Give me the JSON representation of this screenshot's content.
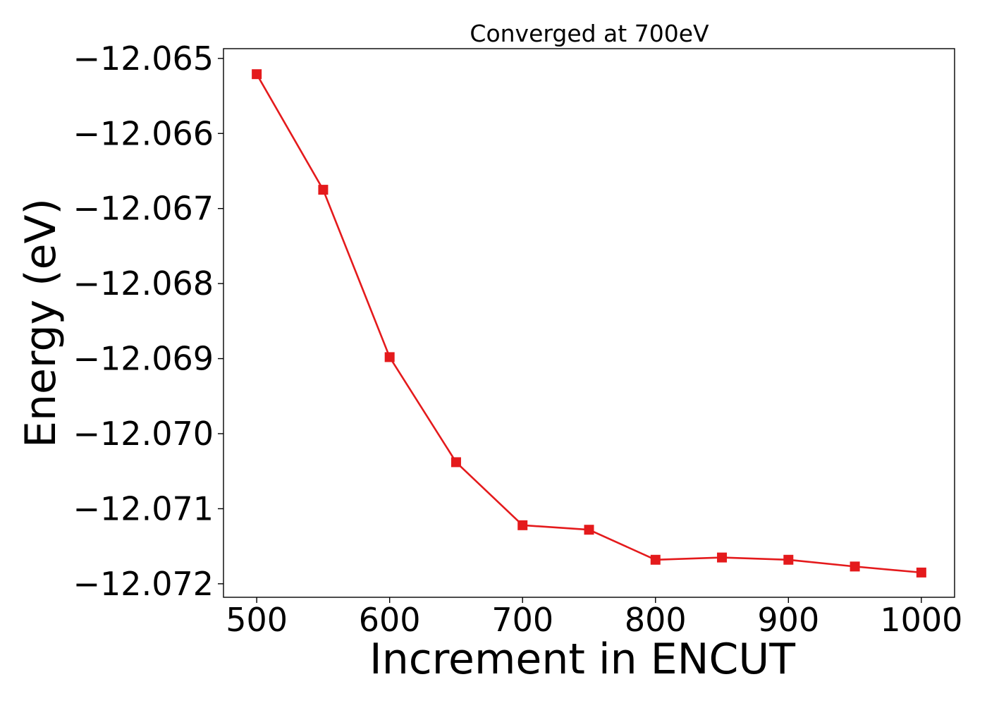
{
  "chart_data": {
    "type": "line",
    "title": "Converged at 700eV",
    "xlabel": "Increment in ENCUT",
    "ylabel": "Energy (eV)",
    "xlim": [
      475,
      1025
    ],
    "ylim": [
      -12.07218,
      -12.06487
    ],
    "x_ticks": [
      500,
      600,
      700,
      800,
      900,
      1000
    ],
    "x_tick_labels": [
      "500",
      "600",
      "700",
      "800",
      "900",
      "1000"
    ],
    "y_ticks": [
      -12.065,
      -12.066,
      -12.067,
      -12.068,
      -12.069,
      -12.07,
      -12.071,
      -12.072
    ],
    "y_tick_labels": [
      "−12.065",
      "−12.066",
      "−12.067",
      "−12.068",
      "−12.069",
      "−12.070",
      "−12.071",
      "−12.072"
    ],
    "grid": false,
    "series": [
      {
        "color": "#e41a1c",
        "marker": "square",
        "x": [
          500,
          550,
          600,
          650,
          700,
          750,
          800,
          850,
          900,
          950,
          1000
        ],
        "y": [
          -12.06521,
          -12.06675,
          -12.06898,
          -12.07038,
          -12.07122,
          -12.07128,
          -12.07168,
          -12.07165,
          -12.07168,
          -12.07177,
          -12.07185
        ]
      }
    ]
  }
}
